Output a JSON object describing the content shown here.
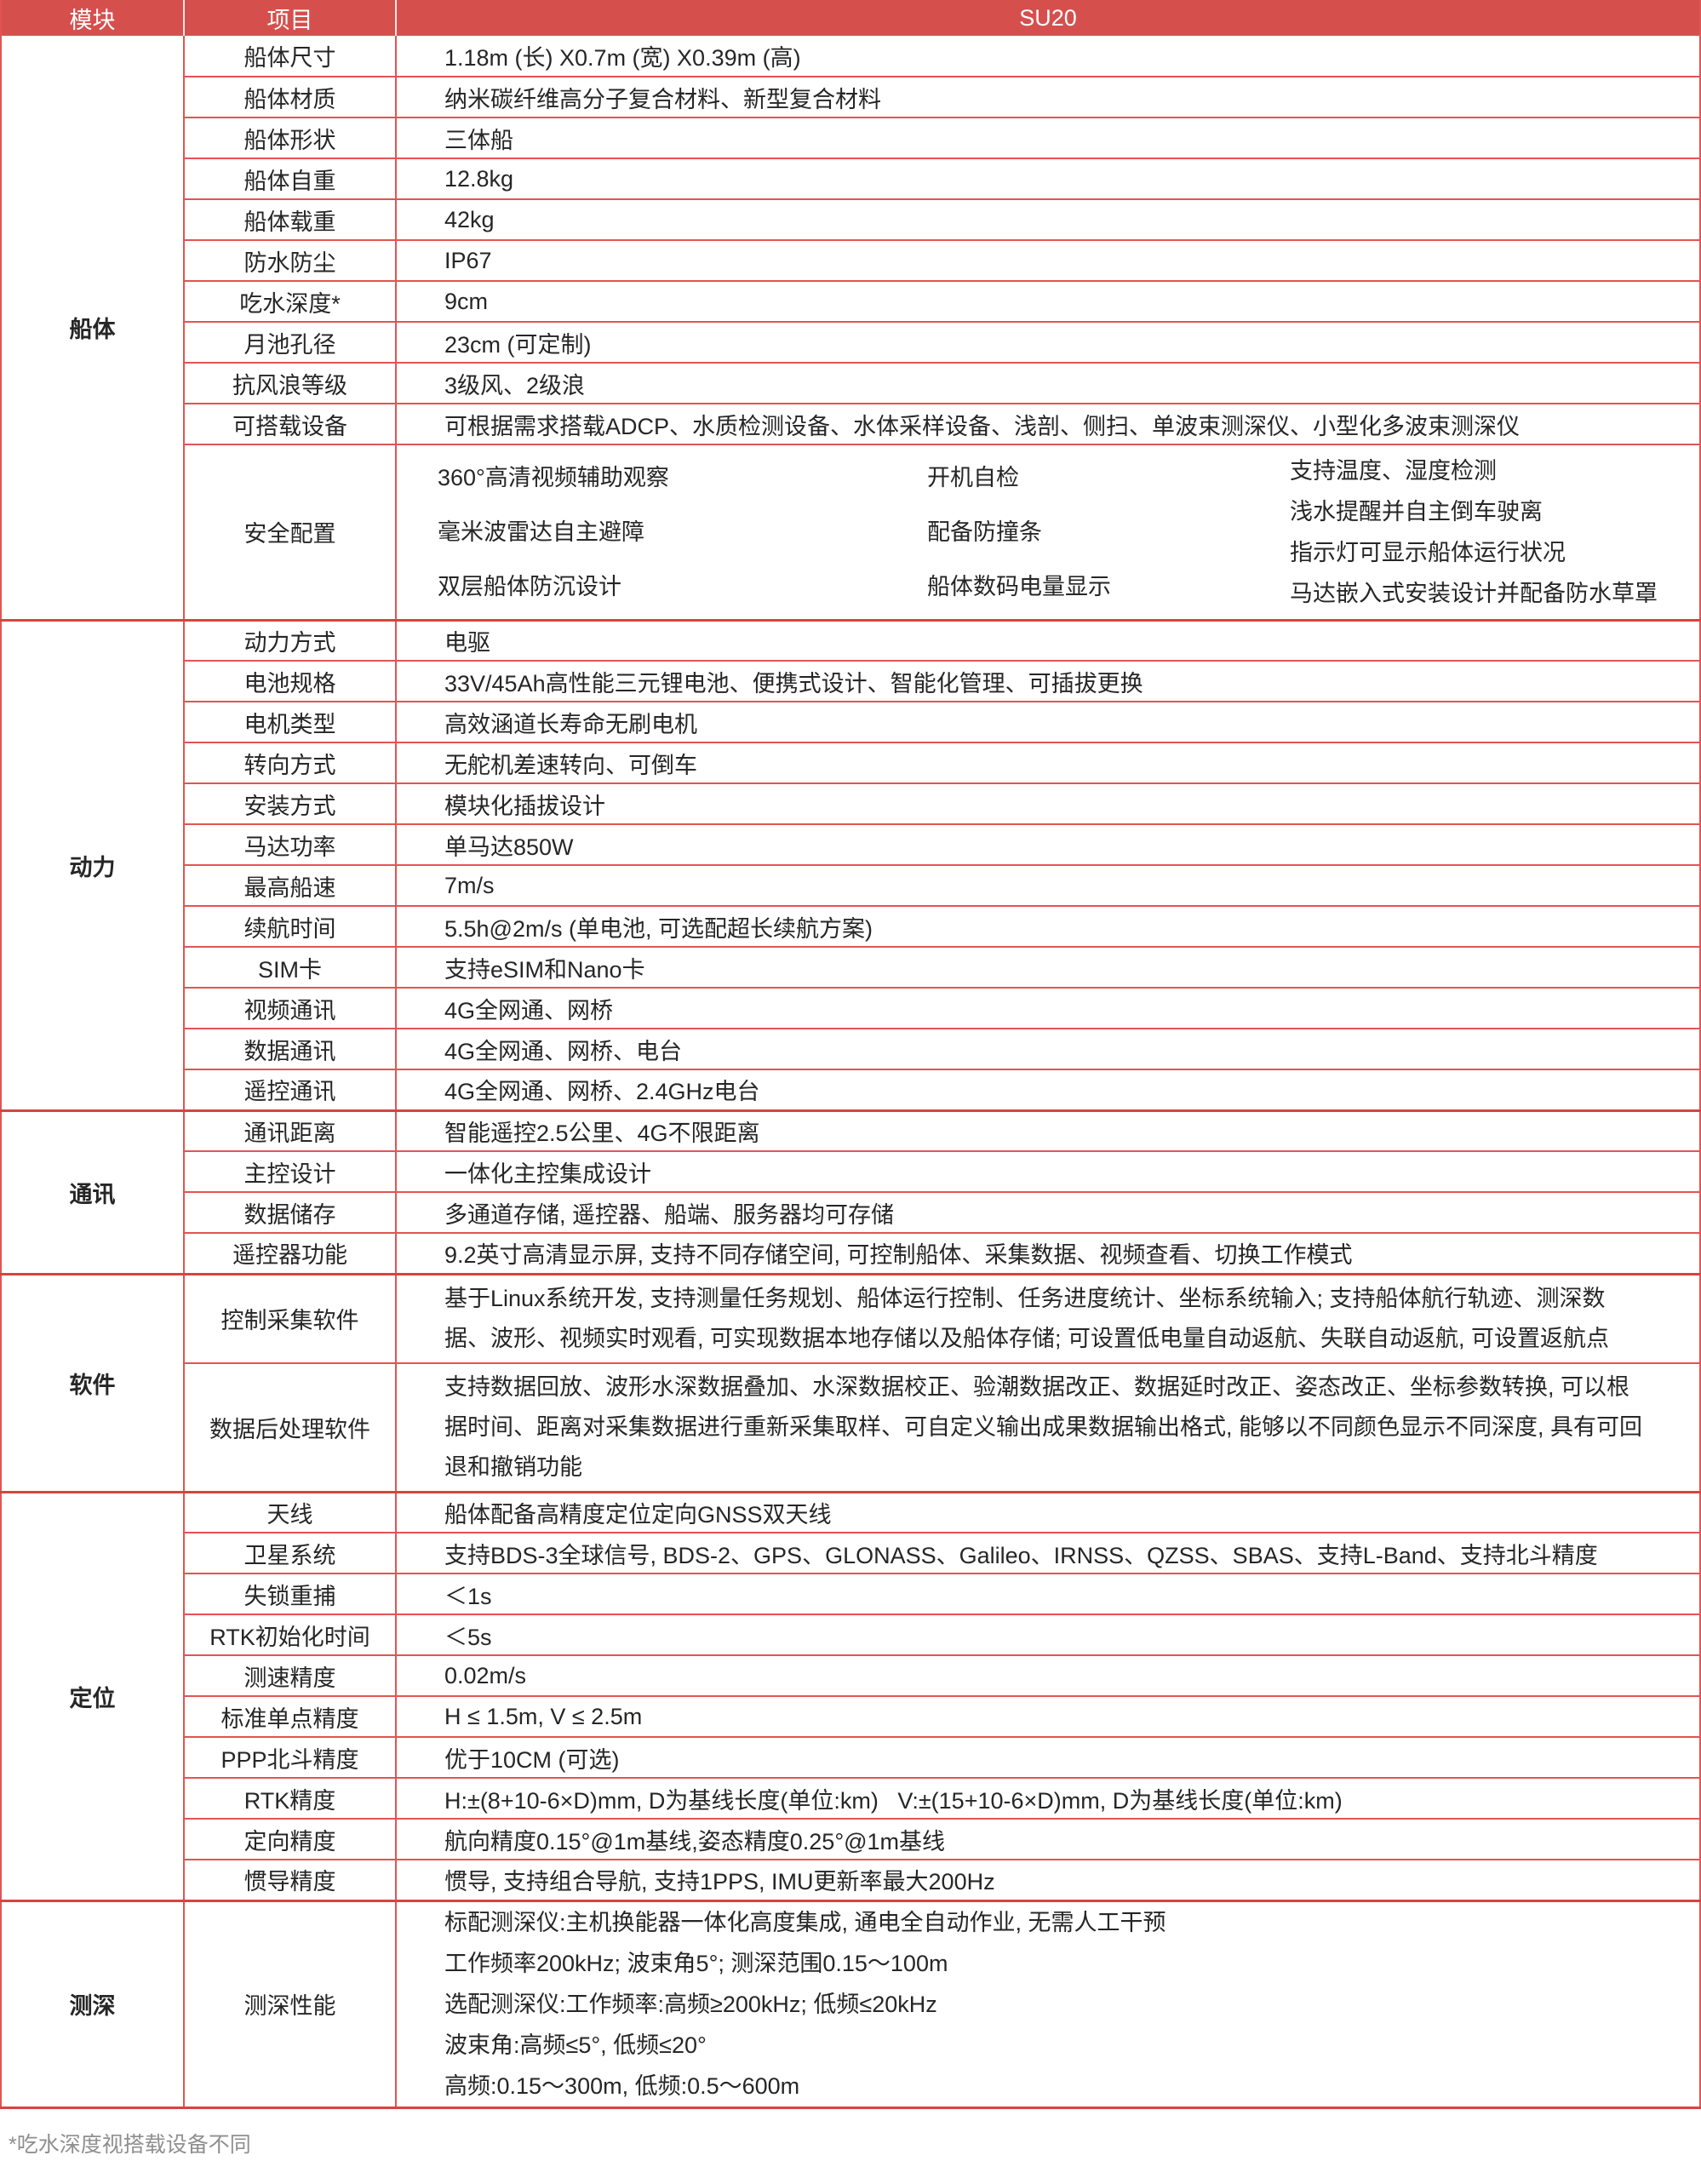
{
  "colors": {
    "header_bg": "#d5504d",
    "header_text": "#ffffff",
    "grid_line": "#e25453",
    "grid_thick": "#d5453f",
    "body_text": "#262626",
    "footnote_text": "#8f8f8f"
  },
  "header": {
    "col_module": "模块",
    "col_item": "项目",
    "col_value": "SU20"
  },
  "sections": [
    {
      "module": "船体",
      "rows": [
        {
          "item": "船体尺寸",
          "value": "1.18m (长) X0.7m (宽) X0.39m (高)"
        },
        {
          "item": "船体材质",
          "value": "纳米碳纤维高分子复合材料、新型复合材料"
        },
        {
          "item": "船体形状",
          "value": "三体船"
        },
        {
          "item": "船体自重",
          "value": "12.8kg"
        },
        {
          "item": "船体载重",
          "value": "42kg"
        },
        {
          "item": "防水防尘",
          "value": "IP67"
        },
        {
          "item": "吃水深度*",
          "value": "9cm"
        },
        {
          "item": "月池孔径",
          "value": "23cm (可定制)"
        },
        {
          "item": "抗风浪等级",
          "value": "3级风、2级浪"
        },
        {
          "item": "可搭载设备",
          "value": "可根据需求搭载ADCP、水质检测设备、水体采样设备、浅剖、侧扫、单波束测深仪、小型化多波束测深仪"
        },
        {
          "item": "安全配置",
          "safety_columns": [
            [
              "360°高清视频辅助观察",
              "毫米波雷达自主避障",
              "双层船体防沉设计"
            ],
            [
              "开机自检",
              "配备防撞条",
              "船体数码电量显示"
            ],
            [
              "支持温度、湿度检测",
              "浅水提醒并自主倒车驶离",
              "指示灯可显示船体运行状况",
              "马达嵌入式安装设计并配备防水草罩"
            ]
          ]
        }
      ]
    },
    {
      "module": "动力",
      "rows": [
        {
          "item": "动力方式",
          "value": "电驱"
        },
        {
          "item": "电池规格",
          "value": "33V/45Ah高性能三元锂电池、便携式设计、智能化管理、可插拔更换"
        },
        {
          "item": "电机类型",
          "value": "高效涵道长寿命无刷电机"
        },
        {
          "item": "转向方式",
          "value": "无舵机差速转向、可倒车"
        },
        {
          "item": "安装方式",
          "value": "模块化插拔设计"
        },
        {
          "item": "马达功率",
          "value": "单马达850W"
        },
        {
          "item": "最高船速",
          "value": "7m/s"
        },
        {
          "item": "续航时间",
          "value": "5.5h@2m/s (单电池, 可选配超长续航方案)"
        },
        {
          "item": "SIM卡",
          "value": "支持eSIM和Nano卡"
        },
        {
          "item": "视频通讯",
          "value": "4G全网通、网桥"
        },
        {
          "item": "数据通讯",
          "value": "4G全网通、网桥、电台"
        },
        {
          "item": "遥控通讯",
          "value": "4G全网通、网桥、2.4GHz电台"
        }
      ]
    },
    {
      "module": "通讯",
      "rows": [
        {
          "item": "通讯距离",
          "value": "智能遥控2.5公里、4G不限距离"
        },
        {
          "item": "主控设计",
          "value": "一体化主控集成设计"
        },
        {
          "item": "数据储存",
          "value": "多通道存储, 遥控器、船端、服务器均可存储"
        },
        {
          "item": "遥控器功能",
          "value": "9.2英寸高清显示屏, 支持不同存储空间, 可控制船体、采集数据、视频查看、切换工作模式"
        }
      ]
    },
    {
      "module": "软件",
      "rows": [
        {
          "item": "控制采集软件",
          "value": "基于Linux系统开发, 支持测量任务规划、船体运行控制、任务进度统计、坐标系统输入; 支持船体航行轨迹、测深数据、波形、视频实时观看, 可实现数据本地存储以及船体存储; 可设置低电量自动返航、失联自动返航, 可设置返航点",
          "wrap": true
        },
        {
          "item": "数据后处理软件",
          "value": "支持数据回放、波形水深数据叠加、水深数据校正、验潮数据改正、数据延时改正、姿态改正、坐标参数转换, 可以根据时间、距离对采集数据进行重新采集取样、可自定义输出成果数据输出格式, 能够以不同颜色显示不同深度, 具有可回退和撤销功能",
          "wrap": true
        }
      ]
    },
    {
      "module": "定位",
      "rows": [
        {
          "item": "天线",
          "value": "船体配备高精度定位定向GNSS双天线"
        },
        {
          "item": "卫星系统",
          "value": "支持BDS-3全球信号, BDS-2、GPS、GLONASS、Galileo、IRNSS、QZSS、SBAS、支持L-Band、支持北斗精度"
        },
        {
          "item": "失锁重捕",
          "value": "＜1s"
        },
        {
          "item": "RTK初始化时间",
          "value": "＜5s"
        },
        {
          "item": "测速精度",
          "value": "0.02m/s"
        },
        {
          "item": "标准单点精度",
          "value": "H ≤ 1.5m, V ≤ 2.5m"
        },
        {
          "item": "PPP北斗精度",
          "value": "优于10CM (可选)"
        },
        {
          "item": "RTK精度",
          "value": "H:±(8+10-6×D)mm, D为基线长度(单位:km)   V:±(15+10-6×D)mm, D为基线长度(单位:km)"
        },
        {
          "item": "定向精度",
          "value": "航向精度0.15°@1m基线,姿态精度0.25°@1m基线"
        },
        {
          "item": "惯导精度",
          "value": "惯导, 支持组合导航, 支持1PPS, IMU更新率最大200Hz"
        }
      ]
    },
    {
      "module": "测深",
      "rows": [
        {
          "item": "测深性能",
          "value_lines": [
            "标配测深仪:主机换能器一体化高度集成, 通电全自动作业, 无需人工干预",
            "工作频率200kHz; 波束角5°; 测深范围0.15～100m",
            "选配测深仪:工作频率:高频≥200kHz; 低频≤20kHz",
            "波束角:高频≤5°, 低频≤20°",
            "高频:0.15～300m, 低频:0.5～600m"
          ]
        }
      ]
    }
  ],
  "footnote": "*吃水深度视搭载设备不同"
}
